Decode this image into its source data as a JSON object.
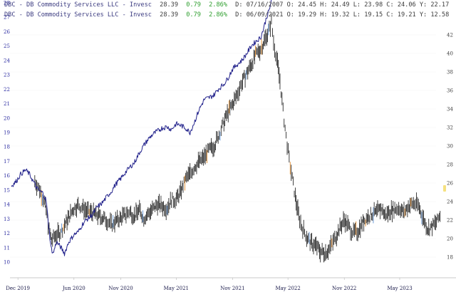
{
  "header": {
    "line1": {
      "prefix": "DBC - DB Commodity Services LLC - Invesc",
      "price": "28.39",
      "change": "0.79",
      "change_pct": "2.86%",
      "ohlc": "D: 07/16/2007 O: 24.45 H: 24.49 L: 23.98 C: 24.06 Y: 22.17"
    },
    "line2": {
      "prefix": "DBC - DB Commodity Services LLC - Invesc",
      "price": "28.39",
      "change": "0.79",
      "change_pct": "2.86%",
      "ohlc": "D: 06/09/2021 O: 19.29 H: 19.32 L: 19.15 C: 19.21 Y: 12.58"
    }
  },
  "colors": {
    "header_prefix": "#3b3b80",
    "header_ohlc": "#3b3b3b",
    "header_up": "#2e9e2e",
    "overlay_series": "#23238c",
    "price_series": "#2b2b2b",
    "highlight_orange": "#e08a2a",
    "highlight_blue": "#5a8fd0",
    "left_tick": "#2a2aa0",
    "right_tick": "#404040",
    "x_tick": "#1a1a4a",
    "last_marker": "#f3dc6a"
  },
  "chart_data": {
    "type": "line",
    "x_axis": {
      "type": "date",
      "range": [
        "2019-11-05",
        "2023-09-20"
      ],
      "ticks": [
        {
          "label": "Dec 2019",
          "date": "2019-12-01"
        },
        {
          "label": "Jun 2020",
          "date": "2020-06-01"
        },
        {
          "label": "Nov 2020",
          "date": "2020-11-01"
        },
        {
          "label": "May 2021",
          "date": "2021-05-01"
        },
        {
          "label": "Nov 2021",
          "date": "2021-11-01"
        },
        {
          "label": "May 2022",
          "date": "2022-05-01"
        },
        {
          "label": "Nov 2022",
          "date": "2022-11-01"
        },
        {
          "label": "May 2023",
          "date": "2023-05-01"
        }
      ]
    },
    "y_left": {
      "range": [
        9.2,
        28.4
      ],
      "ticks": [
        10,
        11,
        12,
        13,
        14,
        15,
        16,
        17,
        18,
        19,
        20,
        21,
        22,
        23,
        24,
        25,
        26,
        27,
        28
      ]
    },
    "y_right": {
      "range": [
        16.4,
        44.1
      ],
      "ticks": [
        18,
        20,
        22,
        24,
        26,
        28,
        30,
        32,
        34,
        36,
        38,
        40,
        42
      ]
    },
    "series": [
      {
        "axis": "left",
        "style": "thin line",
        "points": [
          [
            "2019-11-10",
            15.3
          ],
          [
            "2019-11-25",
            15.6
          ],
          [
            "2019-12-10",
            16.1
          ],
          [
            "2019-12-26",
            16.4
          ],
          [
            "2020-01-08",
            16.1
          ],
          [
            "2020-01-20",
            15.6
          ],
          [
            "2020-02-05",
            15.0
          ],
          [
            "2020-02-20",
            14.8
          ],
          [
            "2020-03-02",
            14.3
          ],
          [
            "2020-03-09",
            12.8
          ],
          [
            "2020-03-18",
            11.0
          ],
          [
            "2020-03-25",
            10.6
          ],
          [
            "2020-04-05",
            11.4
          ],
          [
            "2020-04-20",
            11.0
          ],
          [
            "2020-05-01",
            10.6
          ],
          [
            "2020-05-15",
            11.4
          ],
          [
            "2020-06-01",
            11.9
          ],
          [
            "2020-06-15",
            12.1
          ],
          [
            "2020-07-01",
            12.7
          ],
          [
            "2020-07-15",
            13.0
          ],
          [
            "2020-08-01",
            13.3
          ],
          [
            "2020-08-15",
            13.8
          ],
          [
            "2020-09-01",
            14.1
          ],
          [
            "2020-09-15",
            14.5
          ],
          [
            "2020-10-01",
            14.9
          ],
          [
            "2020-10-15",
            15.4
          ],
          [
            "2020-11-01",
            15.8
          ],
          [
            "2020-11-15",
            16.2
          ],
          [
            "2020-12-01",
            16.6
          ],
          [
            "2020-12-15",
            16.9
          ],
          [
            "2021-01-01",
            17.6
          ],
          [
            "2021-01-15",
            18.1
          ],
          [
            "2021-02-01",
            18.6
          ],
          [
            "2021-02-15",
            18.9
          ],
          [
            "2021-03-01",
            19.1
          ],
          [
            "2021-03-15",
            19.3
          ],
          [
            "2021-04-01",
            19.4
          ],
          [
            "2021-04-15",
            19.2
          ],
          [
            "2021-05-01",
            19.6
          ],
          [
            "2021-05-15",
            19.5
          ],
          [
            "2021-06-01",
            19.3
          ],
          [
            "2021-06-15",
            19.0
          ],
          [
            "2021-07-01",
            19.8
          ],
          [
            "2021-07-15",
            20.6
          ],
          [
            "2021-08-01",
            21.3
          ],
          [
            "2021-08-15",
            21.4
          ],
          [
            "2021-09-01",
            21.6
          ],
          [
            "2021-09-15",
            22.0
          ],
          [
            "2021-10-01",
            22.3
          ],
          [
            "2021-10-15",
            22.7
          ],
          [
            "2021-11-01",
            23.4
          ],
          [
            "2021-11-15",
            23.7
          ],
          [
            "2021-12-01",
            24.0
          ],
          [
            "2021-12-15",
            24.4
          ],
          [
            "2022-01-01",
            25.0
          ],
          [
            "2022-01-15",
            25.3
          ],
          [
            "2022-02-01",
            25.6
          ],
          [
            "2022-02-10",
            26.2
          ],
          [
            "2022-02-20",
            27.0
          ],
          [
            "2022-03-01",
            27.5
          ],
          [
            "2022-03-08",
            28.2
          ]
        ]
      },
      {
        "axis": "right",
        "style": "candles",
        "points": [
          [
            "2020-01-25",
            26.2
          ],
          [
            "2020-02-10",
            25.3
          ],
          [
            "2020-02-25",
            24.0
          ],
          [
            "2020-03-05",
            22.5
          ],
          [
            "2020-03-12",
            20.8
          ],
          [
            "2020-03-20",
            19.8
          ],
          [
            "2020-04-01",
            20.3
          ],
          [
            "2020-04-15",
            20.6
          ],
          [
            "2020-05-01",
            21.4
          ],
          [
            "2020-05-15",
            22.3
          ],
          [
            "2020-06-01",
            23.3
          ],
          [
            "2020-06-15",
            23.6
          ],
          [
            "2020-07-01",
            23.3
          ],
          [
            "2020-07-15",
            22.9
          ],
          [
            "2020-08-01",
            22.8
          ],
          [
            "2020-08-15",
            22.5
          ],
          [
            "2020-09-01",
            22.3
          ],
          [
            "2020-09-15",
            22.0
          ],
          [
            "2020-10-01",
            21.5
          ],
          [
            "2020-10-15",
            21.9
          ],
          [
            "2020-11-01",
            22.2
          ],
          [
            "2020-11-15",
            22.6
          ],
          [
            "2020-12-01",
            22.9
          ],
          [
            "2020-12-15",
            22.4
          ],
          [
            "2021-01-01",
            23.1
          ],
          [
            "2021-01-15",
            22.2
          ],
          [
            "2021-02-01",
            22.8
          ],
          [
            "2021-02-15",
            23.2
          ],
          [
            "2021-03-01",
            23.7
          ],
          [
            "2021-03-15",
            23.5
          ],
          [
            "2021-04-01",
            23.3
          ],
          [
            "2021-04-15",
            24.2
          ],
          [
            "2021-05-01",
            24.2
          ],
          [
            "2021-05-15",
            25.0
          ],
          [
            "2021-06-01",
            26.4
          ],
          [
            "2021-06-15",
            27.0
          ],
          [
            "2021-07-01",
            27.8
          ],
          [
            "2021-07-15",
            28.3
          ],
          [
            "2021-08-01",
            28.8
          ],
          [
            "2021-08-15",
            29.5
          ],
          [
            "2021-09-01",
            30.0
          ],
          [
            "2021-09-15",
            31.0
          ],
          [
            "2021-10-01",
            32.3
          ],
          [
            "2021-10-15",
            33.5
          ],
          [
            "2021-11-01",
            34.5
          ],
          [
            "2021-11-15",
            35.5
          ],
          [
            "2021-12-01",
            36.8
          ],
          [
            "2021-12-15",
            37.7
          ],
          [
            "2022-01-01",
            38.8
          ],
          [
            "2022-01-15",
            39.8
          ],
          [
            "2022-02-01",
            40.5
          ],
          [
            "2022-02-15",
            41.5
          ],
          [
            "2022-03-01",
            42.6
          ],
          [
            "2022-03-08",
            43.4
          ],
          [
            "2022-03-15",
            41.2
          ],
          [
            "2022-03-25",
            39.5
          ],
          [
            "2022-04-05",
            37.0
          ],
          [
            "2022-04-15",
            33.8
          ],
          [
            "2022-04-25",
            31.0
          ],
          [
            "2022-05-05",
            28.5
          ],
          [
            "2022-05-15",
            26.5
          ],
          [
            "2022-05-25",
            24.5
          ],
          [
            "2022-06-05",
            22.5
          ],
          [
            "2022-06-15",
            21.3
          ],
          [
            "2022-07-01",
            20.2
          ],
          [
            "2022-07-15",
            19.5
          ],
          [
            "2022-08-01",
            19.2
          ],
          [
            "2022-08-15",
            18.6
          ],
          [
            "2022-09-01",
            18.5
          ],
          [
            "2022-09-15",
            19.0
          ],
          [
            "2022-10-01",
            20.0
          ],
          [
            "2022-10-15",
            21.0
          ],
          [
            "2022-11-01",
            22.0
          ],
          [
            "2022-11-15",
            21.3
          ],
          [
            "2022-12-01",
            20.6
          ],
          [
            "2022-12-15",
            20.8
          ],
          [
            "2023-01-01",
            21.8
          ],
          [
            "2023-01-15",
            22.3
          ],
          [
            "2023-02-01",
            22.7
          ],
          [
            "2023-02-15",
            22.8
          ],
          [
            "2023-03-01",
            23.3
          ],
          [
            "2023-03-15",
            22.5
          ],
          [
            "2023-04-01",
            23.0
          ],
          [
            "2023-04-15",
            23.2
          ],
          [
            "2023-05-01",
            23.3
          ],
          [
            "2023-05-15",
            22.8
          ],
          [
            "2023-06-01",
            23.6
          ],
          [
            "2023-06-15",
            23.8
          ],
          [
            "2023-07-01",
            23.6
          ],
          [
            "2023-07-15",
            22.3
          ],
          [
            "2023-08-01",
            21.0
          ],
          [
            "2023-08-15",
            21.3
          ],
          [
            "2023-09-01",
            21.9
          ],
          [
            "2023-09-10",
            22.6
          ]
        ]
      }
    ]
  }
}
